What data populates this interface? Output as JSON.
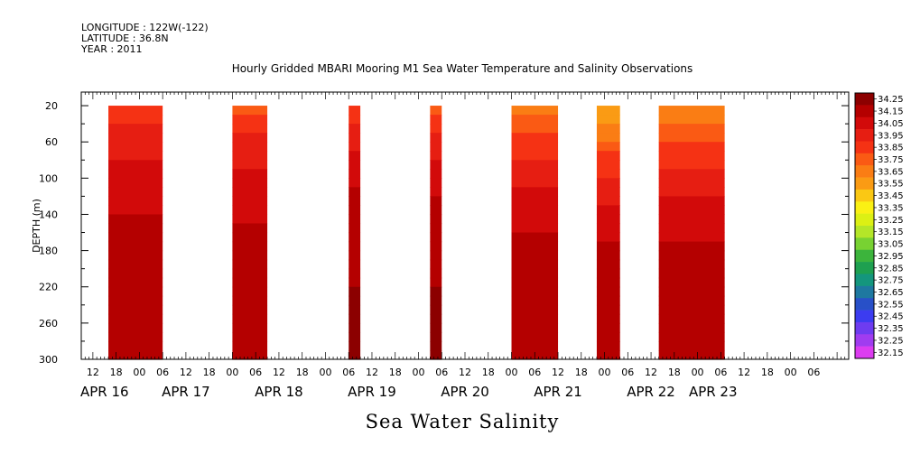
{
  "header": {
    "longitude": "LONGITUDE : 122W(-122)",
    "latitude": "LATITUDE : 36.8N",
    "year": "YEAR : 2011",
    "title": "Hourly Gridded MBARI Mooring M1 Sea Water Temperature and Salinity Observations"
  },
  "chart_data": {
    "type": "heatmap",
    "title": "Hourly Gridded MBARI Mooring M1 Sea Water Temperature and Salinity Observations",
    "variable_label": "Sea Water Salinity",
    "ylabel": "DEPTH (m)",
    "xlabel": "",
    "x_unit": "hours since APR 16 00:00, 2011",
    "x_range_hours": [
      -15,
      183
    ],
    "y_range_m": [
      5,
      300
    ],
    "y_inverted": true,
    "y_ticks": [
      20,
      60,
      100,
      140,
      180,
      220,
      260,
      300
    ],
    "x_hour_tick_labels": [
      {
        "h": -12,
        "label": "12"
      },
      {
        "h": -6,
        "label": "18"
      },
      {
        "h": 0,
        "label": "00"
      },
      {
        "h": 6,
        "label": "06"
      },
      {
        "h": 12,
        "label": "12"
      },
      {
        "h": 18,
        "label": "18"
      },
      {
        "h": 24,
        "label": "00"
      },
      {
        "h": 30,
        "label": "06"
      },
      {
        "h": 36,
        "label": "12"
      },
      {
        "h": 42,
        "label": "18"
      },
      {
        "h": 48,
        "label": "00"
      },
      {
        "h": 54,
        "label": "06"
      },
      {
        "h": 60,
        "label": "12"
      },
      {
        "h": 66,
        "label": "18"
      },
      {
        "h": 72,
        "label": "00"
      },
      {
        "h": 78,
        "label": "06"
      },
      {
        "h": 84,
        "label": "12"
      },
      {
        "h": 90,
        "label": "18"
      },
      {
        "h": 96,
        "label": "00"
      },
      {
        "h": 102,
        "label": "06"
      },
      {
        "h": 108,
        "label": "12"
      },
      {
        "h": 114,
        "label": "18"
      },
      {
        "h": 120,
        "label": "00"
      },
      {
        "h": 126,
        "label": "06"
      },
      {
        "h": 132,
        "label": "12"
      },
      {
        "h": 138,
        "label": "18"
      },
      {
        "h": 144,
        "label": "00"
      },
      {
        "h": 150,
        "label": "06"
      },
      {
        "h": 156,
        "label": "12"
      },
      {
        "h": 162,
        "label": "18"
      },
      {
        "h": 168,
        "label": "00"
      },
      {
        "h": 174,
        "label": "06"
      }
    ],
    "x_date_labels": [
      {
        "h": -9,
        "label": "APR 16"
      },
      {
        "h": 12,
        "label": "APR 17"
      },
      {
        "h": 36,
        "label": "APR 18"
      },
      {
        "h": 60,
        "label": "APR 19"
      },
      {
        "h": 84,
        "label": "APR 20"
      },
      {
        "h": 108,
        "label": "APR 21"
      },
      {
        "h": 132,
        "label": "APR 22"
      },
      {
        "h": 148,
        "label": "APR 23"
      }
    ],
    "data_blocks_hours": [
      {
        "start": -8,
        "end": 6,
        "surface": 33.85,
        "deep": 34.15
      },
      {
        "start": 24,
        "end": 33,
        "surface": 33.8,
        "deep": 34.15
      },
      {
        "start": 54,
        "end": 57,
        "surface": 33.85,
        "deep": 34.2
      },
      {
        "start": 75,
        "end": 78,
        "surface": 33.8,
        "deep": 34.2
      },
      {
        "start": 96,
        "end": 108,
        "surface": 33.65,
        "deep": 34.15
      },
      {
        "start": 118,
        "end": 124,
        "surface": 33.5,
        "deep": 34.15
      },
      {
        "start": 134,
        "end": 151,
        "surface": 33.6,
        "deep": 34.15
      }
    ],
    "colorbar_levels": [
      "34.25",
      "34.15",
      "34.05",
      "33.95",
      "33.85",
      "33.75",
      "33.65",
      "33.55",
      "33.45",
      "33.35",
      "33.25",
      "33.15",
      "33.05",
      "32.95",
      "32.85",
      "32.75",
      "32.65",
      "32.55",
      "32.45",
      "32.35",
      "32.25",
      "32.15"
    ],
    "colorbar_colors": [
      "#8c0000",
      "#b40000",
      "#d20a0a",
      "#e61e12",
      "#f53214",
      "#fa5a14",
      "#fa7d14",
      "#fa9b14",
      "#fac814",
      "#faf014",
      "#dcf014",
      "#b4e628",
      "#78d232",
      "#3cb43c",
      "#1ea050",
      "#14967d",
      "#1e78a0",
      "#2850c8",
      "#3c3cf0",
      "#6e3cf0",
      "#a03cf0",
      "#dc3cf0"
    ]
  }
}
